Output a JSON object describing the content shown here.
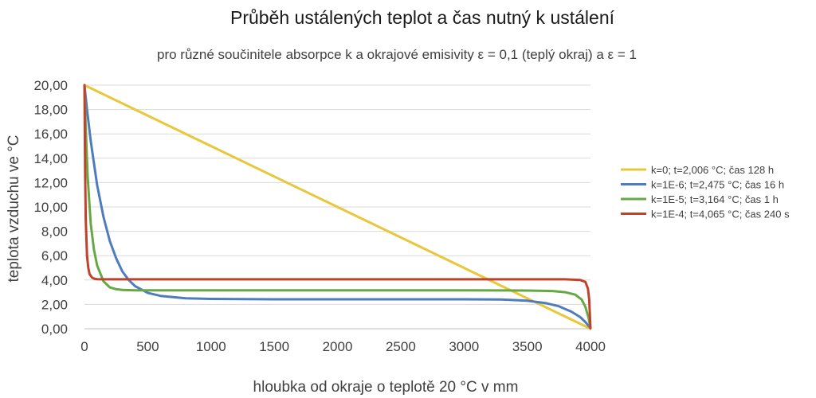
{
  "chart_data": {
    "type": "line",
    "title": "Průběh ustálených teplot a čas nutný k ustálení",
    "subtitle": "pro různé součinitele absorpce k a okrajové emisivity ε = 0,1 (teplý okraj) a ε = 1",
    "xlabel": "hloubka od okraje o teplotě 20 °C v mm",
    "ylabel": "teplota vzduchu ve °C",
    "xlim": [
      0,
      4000
    ],
    "ylim": [
      0,
      20
    ],
    "x_ticks": [
      0,
      500,
      1000,
      1500,
      2000,
      2500,
      3000,
      3500,
      4000
    ],
    "x_tick_labels": [
      "0",
      "500",
      "1000",
      "1500",
      "2000",
      "2500",
      "3000",
      "3500",
      "4000"
    ],
    "y_ticks": [
      0,
      2,
      4,
      6,
      8,
      10,
      12,
      14,
      16,
      18,
      20
    ],
    "y_tick_labels": [
      "0,00",
      "2,00",
      "4,00",
      "6,00",
      "8,00",
      "10,00",
      "12,00",
      "14,00",
      "16,00",
      "18,00",
      "20,00"
    ],
    "grid": "horizontal",
    "legend_position": "right",
    "series": [
      {
        "name": "k=0; t=2,006 °C; čas 128 h",
        "color": "#E8C73A",
        "x": [
          0,
          4000
        ],
        "y": [
          20,
          0
        ]
      },
      {
        "name": "k=1E-6; t=2,475 °C; čas 16 h",
        "color": "#4F7CBD",
        "x": [
          0,
          20,
          50,
          100,
          150,
          200,
          250,
          300,
          350,
          400,
          500,
          600,
          800,
          1000,
          1500,
          2000,
          2500,
          3000,
          3300,
          3500,
          3650,
          3750,
          3850,
          3920,
          3960,
          4000
        ],
        "y": [
          20,
          18.0,
          15.4,
          11.8,
          9.2,
          7.2,
          5.8,
          4.7,
          4.0,
          3.5,
          2.95,
          2.7,
          2.5,
          2.45,
          2.42,
          2.42,
          2.42,
          2.42,
          2.4,
          2.3,
          2.1,
          1.85,
          1.4,
          0.95,
          0.55,
          0.05
        ]
      },
      {
        "name": "k=1E-5; t=3,164 °C; čas 1 h",
        "color": "#67A844",
        "x": [
          0,
          10,
          25,
          50,
          75,
          100,
          150,
          200,
          250,
          300,
          400,
          600,
          1000,
          2000,
          3000,
          3500,
          3700,
          3800,
          3880,
          3930,
          3960,
          3985,
          4000
        ],
        "y": [
          20,
          16.5,
          12.5,
          8.6,
          6.5,
          5.2,
          3.9,
          3.4,
          3.25,
          3.18,
          3.15,
          3.15,
          3.15,
          3.15,
          3.15,
          3.14,
          3.1,
          3.0,
          2.8,
          2.4,
          1.8,
          0.9,
          0.05
        ]
      },
      {
        "name": "k=1E-4; t=4,065 °C; čas 240 s",
        "color": "#C0422B",
        "x": [
          0,
          5,
          10,
          20,
          30,
          40,
          60,
          80,
          100,
          150,
          200,
          1000,
          2000,
          3000,
          3800,
          3920,
          3960,
          3980,
          3990,
          4000
        ],
        "y": [
          20,
          13.0,
          9.0,
          6.0,
          5.0,
          4.5,
          4.2,
          4.1,
          4.07,
          4.06,
          4.06,
          4.06,
          4.06,
          4.06,
          4.06,
          4.0,
          3.85,
          3.3,
          2.4,
          0.05
        ]
      }
    ]
  }
}
